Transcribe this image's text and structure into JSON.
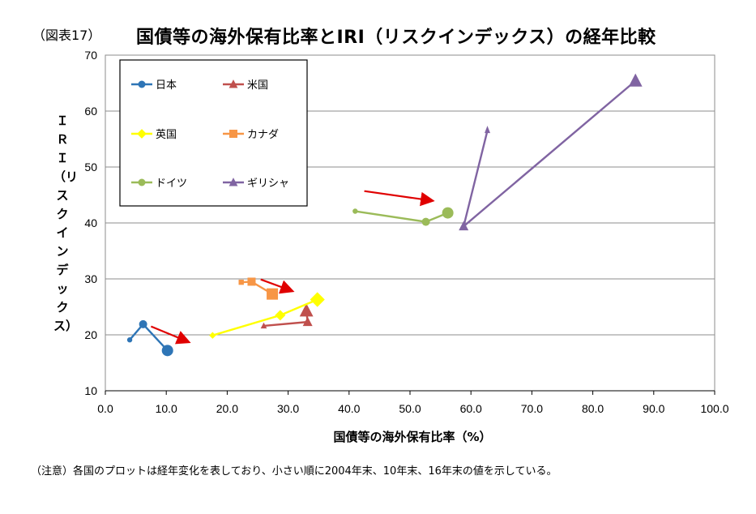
{
  "figure_label": "（図表17）",
  "chart_data": {
    "type": "scatter",
    "title": "国債等の海外保有比率とIRI（リスクインデックス）の経年比較",
    "xlabel": "国債等の海外保有比率（%）",
    "ylabel": "ＩＲＩ（リスクインデックス）",
    "xlim": [
      0,
      100
    ],
    "ylim": [
      10,
      70
    ],
    "xticks": [
      "0.0",
      "10.0",
      "20.0",
      "30.0",
      "40.0",
      "50.0",
      "60.0",
      "70.0",
      "80.0",
      "90.0",
      "100.0"
    ],
    "yticks": [
      "10",
      "20",
      "30",
      "40",
      "50",
      "60",
      "70"
    ],
    "grid": "horizontal",
    "legend_position": "top-left",
    "series": [
      {
        "name": "日本",
        "color": "#2E75B6",
        "marker": "circle",
        "x": [
          4.0,
          6.2,
          10.2
        ],
        "y": [
          19.1,
          21.9,
          17.2
        ]
      },
      {
        "name": "米国",
        "color": "#C0504D",
        "marker": "triangle",
        "x": [
          26.0,
          33.2,
          33.0
        ],
        "y": [
          21.6,
          22.3,
          24.3
        ]
      },
      {
        "name": "英国",
        "color": "#FFFF00",
        "marker": "diamond",
        "x": [
          17.6,
          28.7,
          34.8
        ],
        "y": [
          19.9,
          23.5,
          26.3
        ]
      },
      {
        "name": "カナダ",
        "color": "#F79646",
        "marker": "square",
        "x": [
          22.3,
          24.0,
          27.4
        ],
        "y": [
          29.4,
          29.5,
          27.3
        ]
      },
      {
        "name": "ドイツ",
        "color": "#9BBB59",
        "marker": "circle",
        "x": [
          41.0,
          52.6,
          56.2
        ],
        "y": [
          42.1,
          40.2,
          41.8
        ]
      },
      {
        "name": "ギリシャ",
        "color": "#8064A2",
        "marker": "triangle",
        "x": [
          62.7,
          58.8,
          87.0
        ],
        "y": [
          56.5,
          39.4,
          65.4
        ]
      }
    ],
    "annotations": [
      "red-arrow",
      "red-arrow",
      "red-arrow",
      "red-arrow"
    ]
  },
  "note": "（注意）各国のプロットは経年変化を表しており、小さい順に2004年末、10年末、16年末の値を示している。"
}
